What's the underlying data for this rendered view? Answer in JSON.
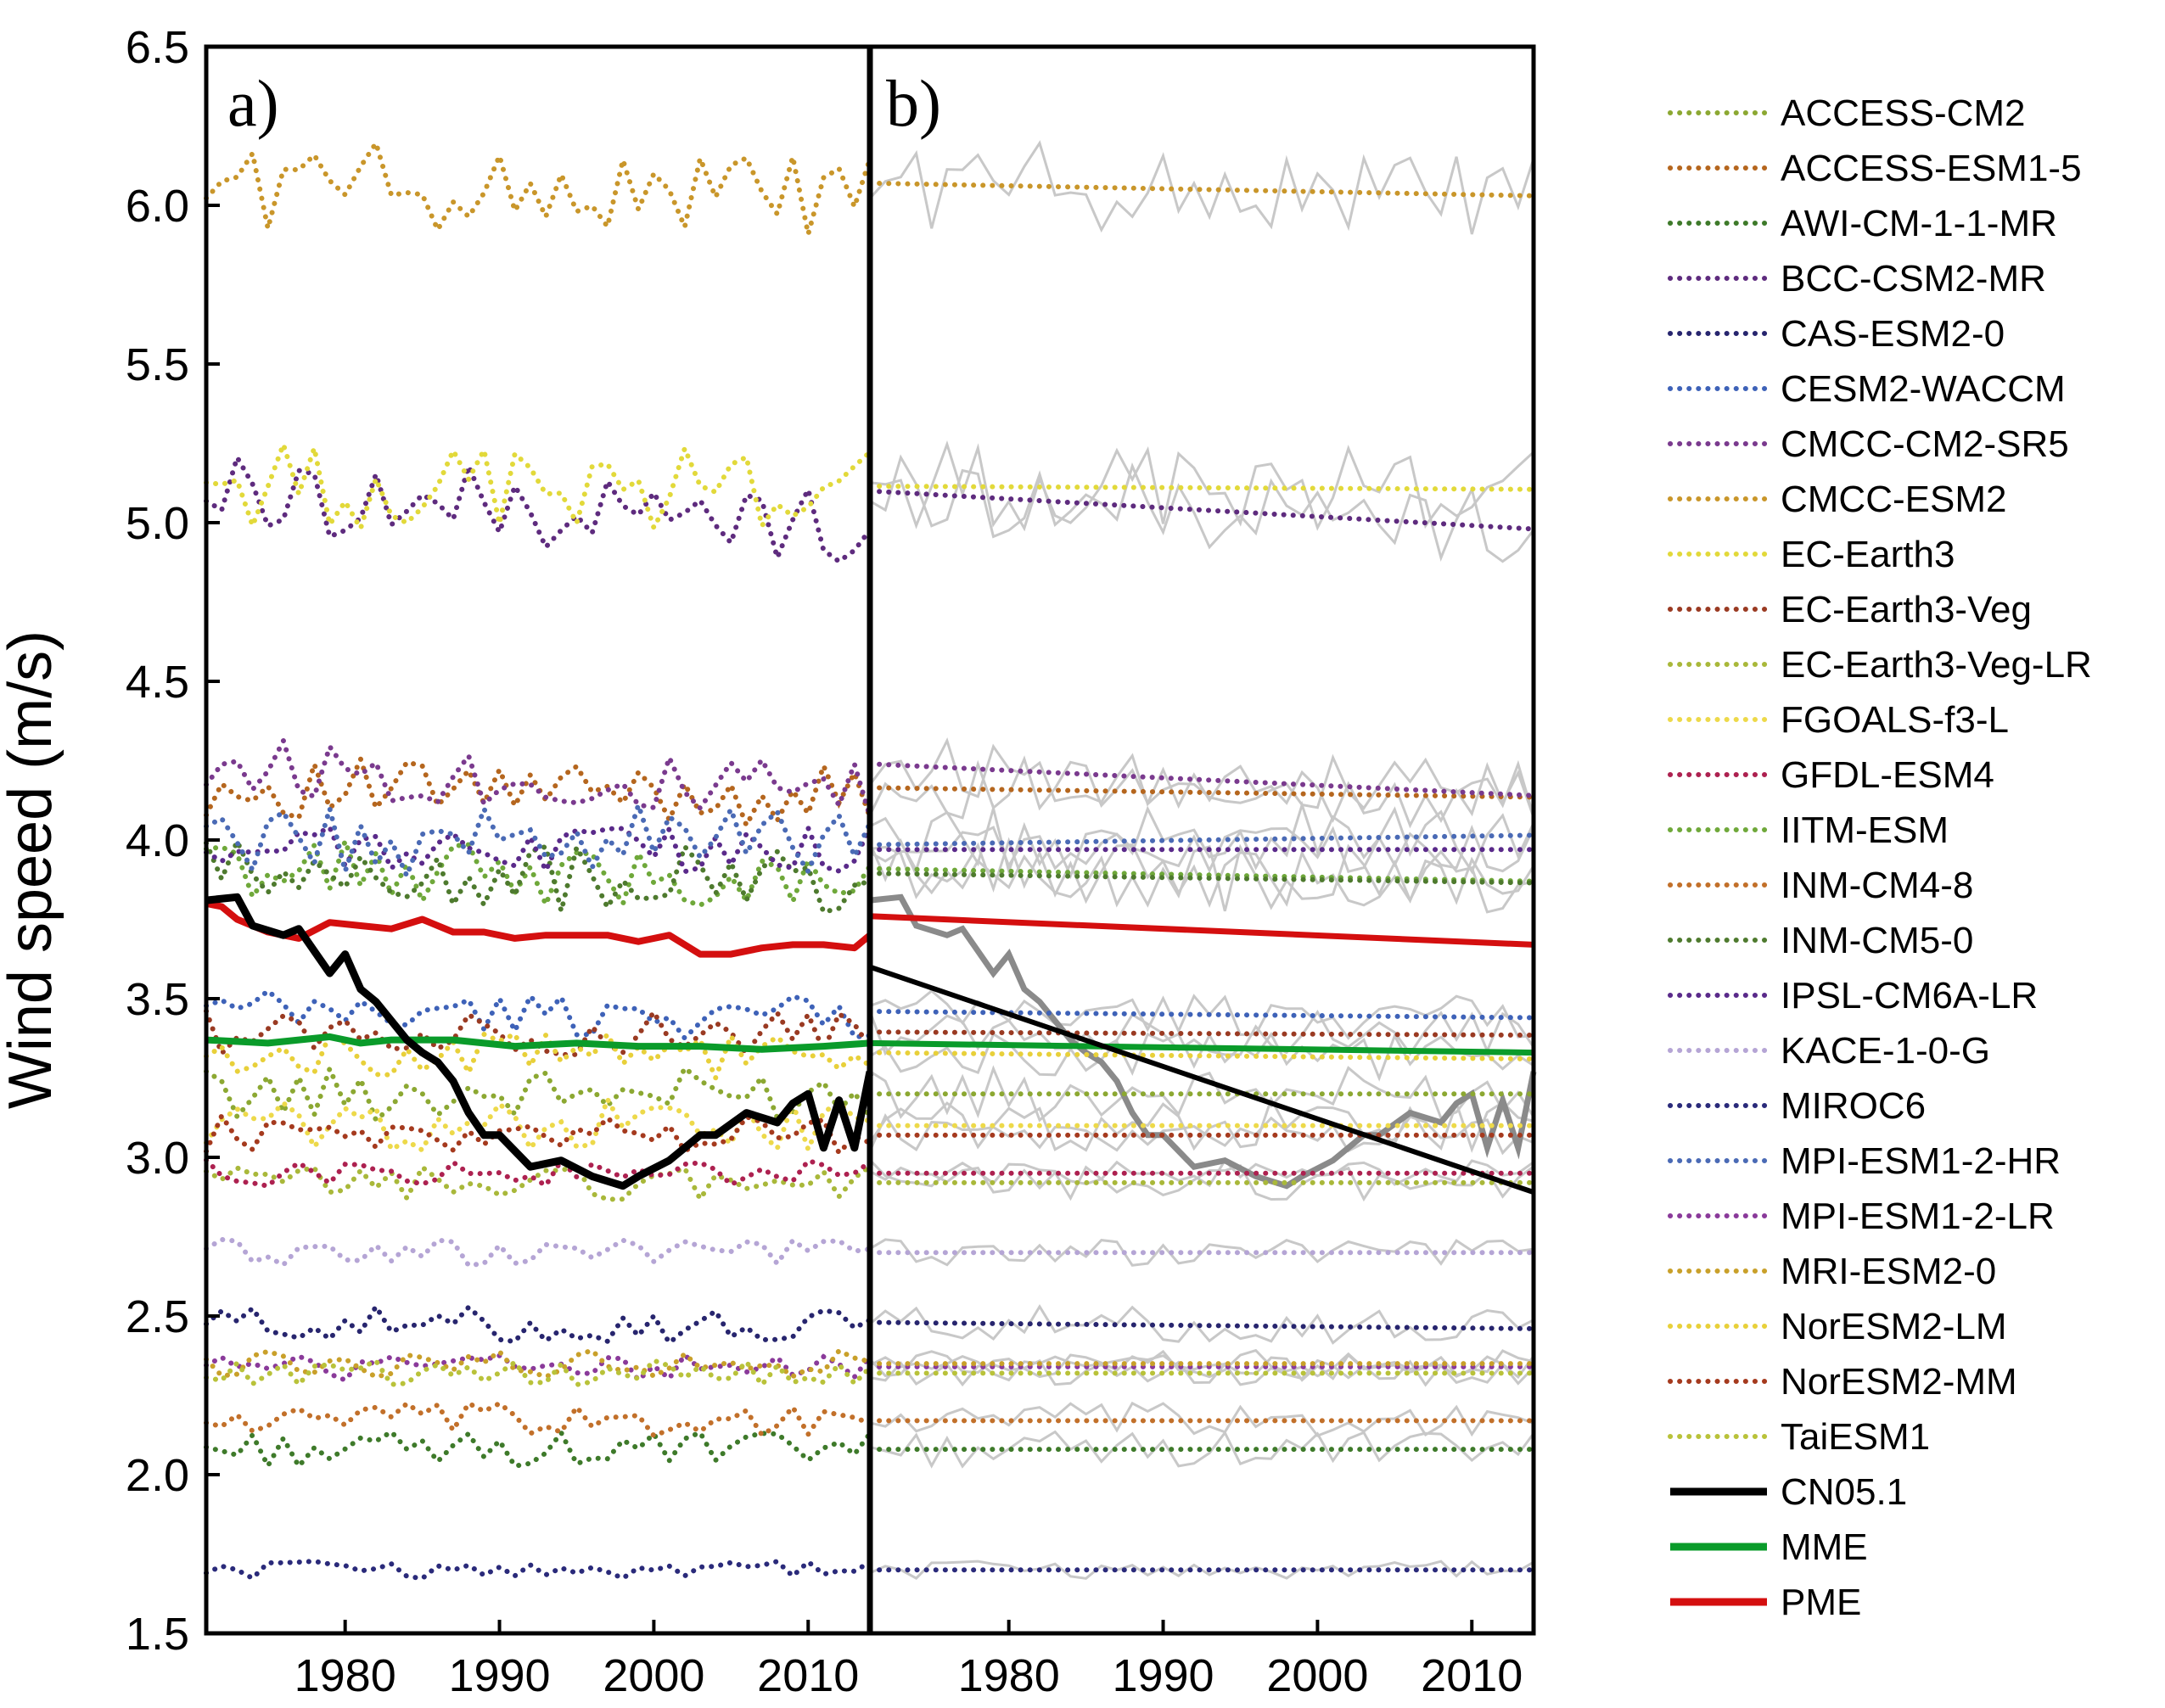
{
  "chart_data": {
    "type": "line",
    "ylabel": "Wind speed (m/s)",
    "ylim": [
      1.5,
      6.5
    ],
    "yticks": [
      "1.5",
      "2.0",
      "2.5",
      "3.0",
      "3.5",
      "4.0",
      "4.5",
      "5.0",
      "5.5",
      "6.0",
      "6.5"
    ],
    "xlim": [
      1971,
      2014
    ],
    "xticks": [
      "1980",
      "1990",
      "2000",
      "2010"
    ],
    "panels": [
      {
        "label": "a)",
        "content": "annual series"
      },
      {
        "label": "b)",
        "content": "linear trends"
      }
    ],
    "models": [
      {
        "name": "ACCESS-CM2",
        "color": "#8CA832",
        "mean": 3.2,
        "amp": 0.06,
        "trend": 0.0
      },
      {
        "name": "ACCESS-ESM1-5",
        "color": "#B5661E",
        "mean": 4.15,
        "amp": 0.07,
        "trend": -0.03
      },
      {
        "name": "AWI-CM-1-1-MR",
        "color": "#3E7A2A",
        "mean": 2.08,
        "amp": 0.04,
        "trend": 0.0
      },
      {
        "name": "BCC-CSM2-MR",
        "color": "#5E2B7E",
        "mean": 5.04,
        "amp": 0.09,
        "trend": -0.12
      },
      {
        "name": "CAS-ESM2-0",
        "color": "#27256E",
        "mean": 2.47,
        "amp": 0.04,
        "trend": -0.02
      },
      {
        "name": "CESM2-WACCM",
        "color": "#3E62B8",
        "mean": 3.45,
        "amp": 0.05,
        "trend": -0.02
      },
      {
        "name": "CMCC-CM2-SR5",
        "color": "#7A3A8E",
        "mean": 4.19,
        "amp": 0.07,
        "trend": -0.1
      },
      {
        "name": "CMCC-ESM2",
        "color": "#C9962A",
        "mean": 6.05,
        "amp": 0.1,
        "trend": -0.04
      },
      {
        "name": "EC-Earth3",
        "color": "#E2D93A",
        "mean": 5.11,
        "amp": 0.1,
        "trend": -0.01
      },
      {
        "name": "EC-Earth3-Veg",
        "color": "#9A3A22",
        "mean": 3.39,
        "amp": 0.05,
        "trend": -0.01
      },
      {
        "name": "EC-Earth3-Veg-LR",
        "color": "#A9B83A",
        "mean": 2.92,
        "amp": 0.04,
        "trend": 0.0
      },
      {
        "name": "FGOALS-f3-L",
        "color": "#EDD94A",
        "mean": 3.1,
        "amp": 0.06,
        "trend": 0.0
      },
      {
        "name": "GFDL-ESM4",
        "color": "#AD2150",
        "mean": 2.95,
        "amp": 0.03,
        "trend": 0.0
      },
      {
        "name": "IITM-ESM",
        "color": "#6FA83A",
        "mean": 3.89,
        "amp": 0.07,
        "trend": -0.04
      },
      {
        "name": "INM-CM4-8",
        "color": "#C2702A",
        "mean": 2.17,
        "amp": 0.04,
        "trend": 0.0
      },
      {
        "name": "INM-CM5-0",
        "color": "#4E7A2E",
        "mean": 3.88,
        "amp": 0.08,
        "trend": -0.03
      },
      {
        "name": "IPSL-CM6A-LR",
        "color": "#5A2A8A",
        "mean": 3.97,
        "amp": 0.05,
        "trend": 0.0
      },
      {
        "name": "KACE-1-0-G",
        "color": "#B5A5D5",
        "mean": 2.7,
        "amp": 0.03,
        "trend": 0.0
      },
      {
        "name": "MIROC6",
        "color": "#2A2A7A",
        "mean": 1.7,
        "amp": 0.02,
        "trend": 0.0
      },
      {
        "name": "MPI-ESM1-2-HR",
        "color": "#4A6AB5",
        "mean": 4.0,
        "amp": 0.08,
        "trend": 0.03
      },
      {
        "name": "MPI-ESM1-2-LR",
        "color": "#8A3A9A",
        "mean": 2.34,
        "amp": 0.03,
        "trend": 0.0
      },
      {
        "name": "MRI-ESM2-0",
        "color": "#C9A02A",
        "mean": 2.35,
        "amp": 0.03,
        "trend": 0.0
      },
      {
        "name": "NorESM2-LM",
        "color": "#E8D03A",
        "mean": 3.32,
        "amp": 0.05,
        "trend": -0.02
      },
      {
        "name": "NorESM2-MM",
        "color": "#A53A1E",
        "mean": 3.07,
        "amp": 0.05,
        "trend": 0.0
      },
      {
        "name": "TaiESM1",
        "color": "#B9C23A",
        "mean": 2.32,
        "amp": 0.03,
        "trend": 0.0
      }
    ],
    "observations": {
      "name": "CN05.1",
      "color": "#000000",
      "x": [
        1971,
        1973,
        1974,
        1976,
        1977,
        1979,
        1980,
        1981,
        1982,
        1984,
        1985,
        1986,
        1987,
        1988,
        1989,
        1990,
        1992,
        1994,
        1996,
        1998,
        1999,
        2001,
        2003,
        2004,
        2006,
        2008,
        2009,
        2010,
        2011,
        2012,
        2013,
        2014
      ],
      "y": [
        3.81,
        3.82,
        3.73,
        3.7,
        3.72,
        3.58,
        3.64,
        3.53,
        3.49,
        3.37,
        3.33,
        3.3,
        3.24,
        3.14,
        3.07,
        3.07,
        2.97,
        2.99,
        2.94,
        2.91,
        2.94,
        2.99,
        3.07,
        3.07,
        3.14,
        3.11,
        3.17,
        3.2,
        3.03,
        3.18,
        3.03,
        3.27
      ],
      "trend_start": 3.6,
      "trend_end": 2.89
    },
    "mme": {
      "name": "MME",
      "color": "#0A9B2A",
      "x": [
        1971,
        1975,
        1979,
        1981,
        1983,
        1987,
        1991,
        1995,
        1999,
        2003,
        2007,
        2011,
        2014
      ],
      "y": [
        3.37,
        3.36,
        3.38,
        3.36,
        3.37,
        3.37,
        3.35,
        3.36,
        3.35,
        3.35,
        3.34,
        3.35,
        3.36
      ],
      "trend_start": 3.36,
      "trend_end": 3.33
    },
    "pme": {
      "name": "PME",
      "color": "#D40F0F",
      "x": [
        1971,
        1972,
        1973,
        1975,
        1977,
        1979,
        1981,
        1983,
        1985,
        1987,
        1989,
        1991,
        1993,
        1995,
        1997,
        1999,
        2001,
        2003,
        2005,
        2007,
        2009,
        2011,
        2013,
        2014
      ],
      "y": [
        3.8,
        3.79,
        3.75,
        3.71,
        3.69,
        3.74,
        3.73,
        3.72,
        3.75,
        3.71,
        3.71,
        3.69,
        3.7,
        3.7,
        3.7,
        3.68,
        3.7,
        3.64,
        3.64,
        3.66,
        3.67,
        3.67,
        3.66,
        3.7
      ],
      "trend_start": 3.76,
      "trend_end": 3.67
    }
  }
}
